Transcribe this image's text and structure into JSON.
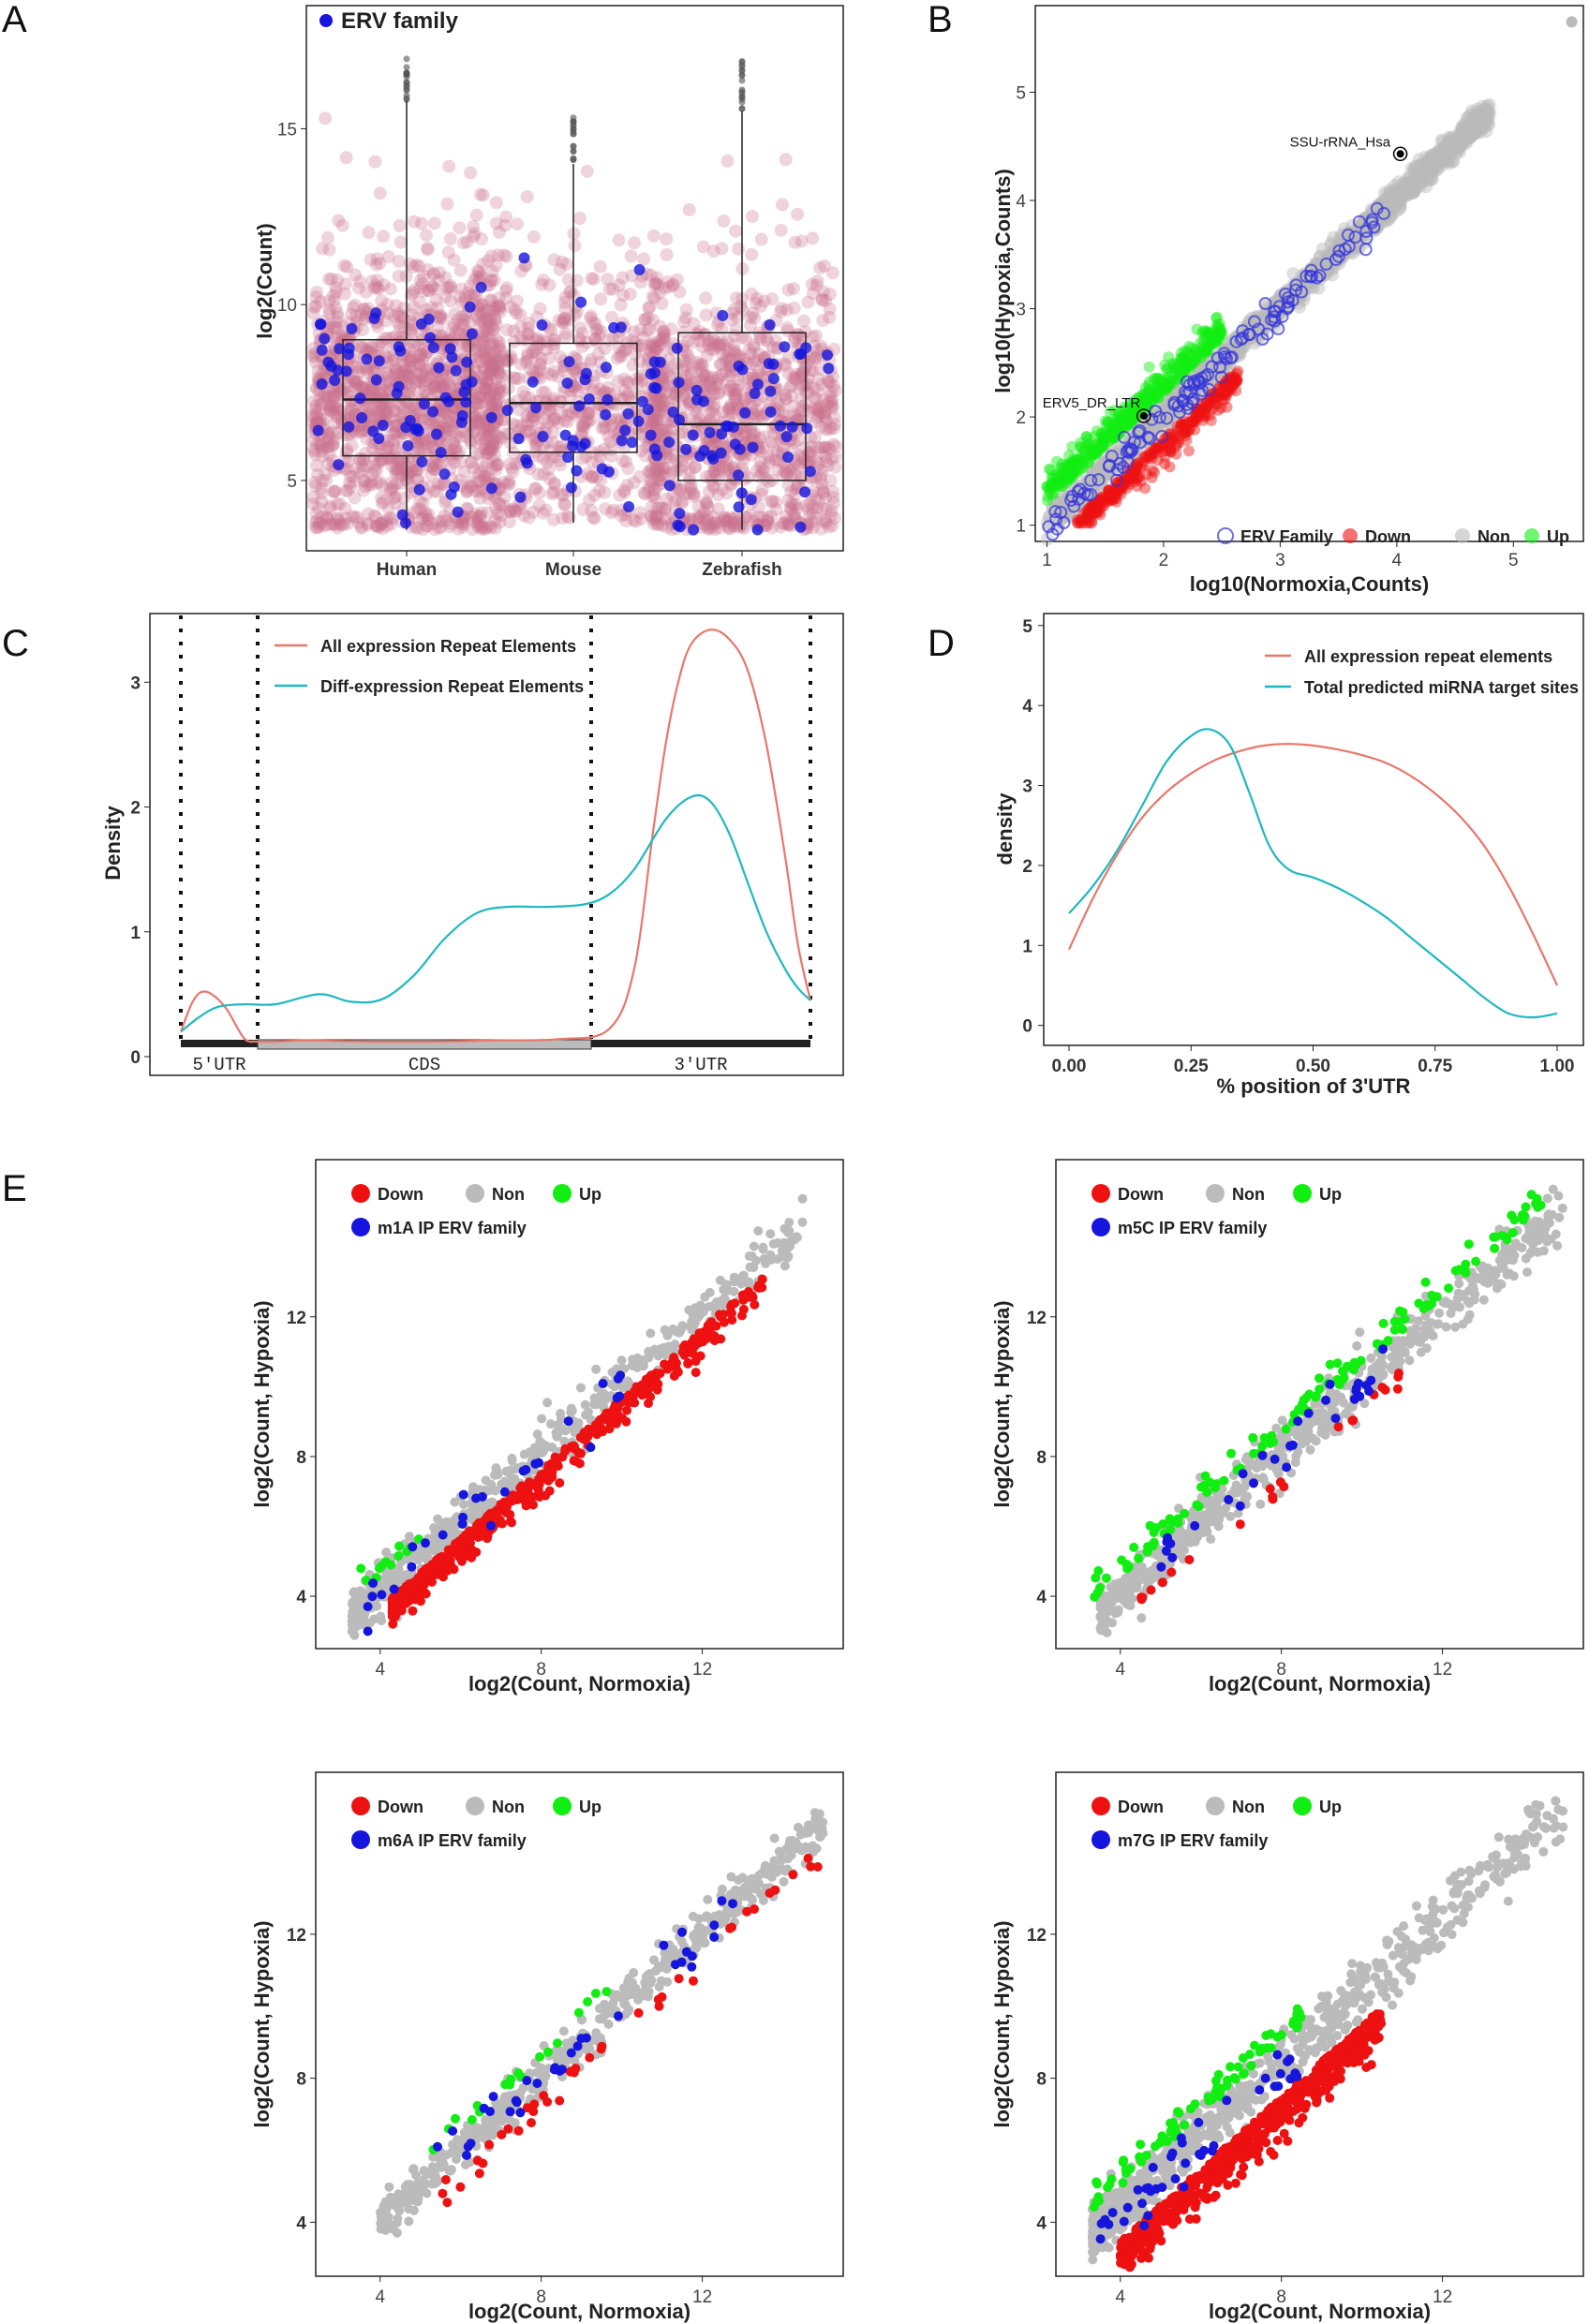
{
  "colors": {
    "down": "#ee1111",
    "non": "#bbbbbb",
    "up": "#11ee11",
    "erv": "#1515dd",
    "pink": "#c96f90",
    "salmon": "#e8776c",
    "teal": "#1fb8bf"
  },
  "chart_data": [
    {
      "panel": "A",
      "type": "box",
      "categories": [
        "Human",
        "Mouse",
        "Zebrafish"
      ],
      "ylabel": "log2(Count)",
      "ylim": [
        3,
        18.5
      ],
      "yticks": [
        5,
        10,
        15
      ],
      "legend": [
        "ERV family"
      ],
      "boxes": [
        {
          "name": "Human",
          "min": 3.6,
          "q1": 5.7,
          "median": 7.3,
          "q3": 9.0,
          "max": 15.8
        },
        {
          "name": "Mouse",
          "min": 3.8,
          "q1": 5.8,
          "median": 7.2,
          "q3": 8.9,
          "max": 14.0
        },
        {
          "name": "Zebrafish",
          "min": 3.6,
          "q1": 5.0,
          "median": 6.6,
          "q3": 9.2,
          "max": 15.5
        }
      ]
    },
    {
      "panel": "B",
      "type": "scatter",
      "xlabel": "log10(Normoxia,Counts)",
      "ylabel": "log10(Hypoxia,Counts)",
      "xlim": [
        0.9,
        5.6
      ],
      "ylim": [
        0.85,
        5.8
      ],
      "xticks": [
        1,
        2,
        3,
        4,
        5
      ],
      "yticks": [
        1,
        2,
        3,
        4,
        5
      ],
      "legend": [
        "ERV Family",
        "Down",
        "Non",
        "Up"
      ],
      "annotations": [
        {
          "text": "SSU-rRNA_Hsa",
          "x": 4.03,
          "y": 4.43
        },
        {
          "text": "ERV5_DR_LTR",
          "x": 1.83,
          "y": 2.01
        }
      ]
    },
    {
      "panel": "C",
      "type": "line",
      "ylabel": "Density",
      "ylim": [
        -0.15,
        3.55
      ],
      "yticks": [
        0,
        1,
        2,
        3
      ],
      "regions": [
        "5'UTR",
        "CDS",
        "3'UTR"
      ],
      "series": [
        {
          "name": "All expression Repeat Elements",
          "color": "#e8776c",
          "x": [
            0,
            0.02,
            0.04,
            0.07,
            0.1,
            0.12,
            0.15,
            0.2,
            0.3,
            0.4,
            0.5,
            0.6,
            0.68,
            0.72,
            0.75,
            0.77,
            0.79,
            0.81,
            0.84,
            0.87,
            0.9,
            0.93,
            0.96,
            0.98,
            1.0
          ],
          "y": [
            0.2,
            0.45,
            0.52,
            0.4,
            0.15,
            0.12,
            0.12,
            0.13,
            0.12,
            0.12,
            0.13,
            0.14,
            0.22,
            0.7,
            1.8,
            2.5,
            3.0,
            3.3,
            3.42,
            3.35,
            3.1,
            2.5,
            1.6,
            0.9,
            0.45
          ]
        },
        {
          "name": "Diff-expression Repeat Elements",
          "color": "#1fb8bf",
          "x": [
            0,
            0.03,
            0.06,
            0.1,
            0.15,
            0.22,
            0.27,
            0.32,
            0.37,
            0.42,
            0.47,
            0.52,
            0.58,
            0.64,
            0.68,
            0.72,
            0.77,
            0.81,
            0.84,
            0.87,
            0.9,
            0.93,
            0.96,
            0.98,
            1.0
          ],
          "y": [
            0.2,
            0.32,
            0.4,
            0.42,
            0.42,
            0.5,
            0.44,
            0.46,
            0.65,
            0.95,
            1.15,
            1.2,
            1.2,
            1.22,
            1.3,
            1.5,
            1.9,
            2.08,
            2.05,
            1.8,
            1.4,
            1.0,
            0.7,
            0.55,
            0.45
          ]
        }
      ]
    },
    {
      "panel": "D",
      "type": "line",
      "xlabel": "% position of 3'UTR",
      "ylabel": "density",
      "xlim": [
        -0.05,
        1.05
      ],
      "ylim": [
        -0.25,
        5.15
      ],
      "xticks": [
        "0.00",
        "0.25",
        "0.50",
        "0.75",
        "1.00"
      ],
      "yticks": [
        0,
        1,
        2,
        3,
        4,
        5
      ],
      "series": [
        {
          "name": "All expression repeat elements",
          "color": "#e8776c",
          "x": [
            0,
            0.05,
            0.1,
            0.15,
            0.2,
            0.25,
            0.3,
            0.35,
            0.4,
            0.45,
            0.5,
            0.55,
            0.6,
            0.65,
            0.7,
            0.75,
            0.8,
            0.85,
            0.9,
            0.95,
            1.0
          ],
          "y": [
            0.95,
            1.6,
            2.15,
            2.6,
            2.92,
            3.15,
            3.32,
            3.43,
            3.5,
            3.52,
            3.5,
            3.45,
            3.38,
            3.28,
            3.12,
            2.9,
            2.62,
            2.25,
            1.75,
            1.15,
            0.5
          ]
        },
        {
          "name": "Total predicted miRNA target sites",
          "color": "#1fb8bf",
          "x": [
            0,
            0.05,
            0.1,
            0.15,
            0.2,
            0.25,
            0.29,
            0.33,
            0.37,
            0.41,
            0.45,
            0.5,
            0.55,
            0.6,
            0.65,
            0.7,
            0.75,
            0.8,
            0.85,
            0.9,
            0.95,
            1.0
          ],
          "y": [
            1.4,
            1.75,
            2.2,
            2.75,
            3.3,
            3.62,
            3.7,
            3.5,
            2.9,
            2.25,
            1.95,
            1.85,
            1.72,
            1.55,
            1.35,
            1.1,
            0.85,
            0.6,
            0.35,
            0.15,
            0.1,
            0.15
          ]
        }
      ]
    },
    {
      "panel": "E",
      "type": "scatter",
      "title": "m1A IP ERV family",
      "xlabel": "log2(Count, Normoxia)",
      "ylabel": "log2(Count, Hypoxia)",
      "xlim": [
        2.4,
        15.5
      ],
      "ylim": [
        2.5,
        16.5
      ],
      "xticks": [
        4,
        8,
        12
      ],
      "yticks": [
        4,
        8,
        12
      ],
      "legend": [
        "Down",
        "Non",
        "Up",
        "m1A IP ERV family"
      ]
    },
    {
      "panel": "E",
      "type": "scatter",
      "title": "m5C IP ERV family",
      "xlabel": "log2(Count, Normoxia)",
      "ylabel": "log2(Count, Hypoxia)",
      "xlim": [
        2.4,
        15.5
      ],
      "ylim": [
        2.5,
        16.5
      ],
      "xticks": [
        4,
        8,
        12
      ],
      "yticks": [
        4,
        8,
        12
      ],
      "legend": [
        "Down",
        "Non",
        "Up",
        "m5C IP ERV family"
      ]
    },
    {
      "panel": "E",
      "type": "scatter",
      "title": "m6A IP ERV family",
      "xlabel": "log2(Count, Normoxia)",
      "ylabel": "log2(Count, Hypoxia)",
      "xlim": [
        2.4,
        15.5
      ],
      "ylim": [
        2.5,
        16.5
      ],
      "xticks": [
        4,
        8,
        12
      ],
      "yticks": [
        4,
        8,
        12
      ],
      "legend": [
        "Down",
        "Non",
        "Up",
        "m6A IP ERV family"
      ]
    },
    {
      "panel": "E",
      "type": "scatter",
      "title": "m7G IP ERV family",
      "xlabel": "log2(Count, Normoxia)",
      "ylabel": "log2(Count, Hypoxia)",
      "xlim": [
        2.4,
        15.5
      ],
      "ylim": [
        2.5,
        16.5
      ],
      "xticks": [
        4,
        8,
        12
      ],
      "yticks": [
        4,
        8,
        12
      ],
      "legend": [
        "Down",
        "Non",
        "Up",
        "m7G IP ERV family"
      ]
    }
  ]
}
